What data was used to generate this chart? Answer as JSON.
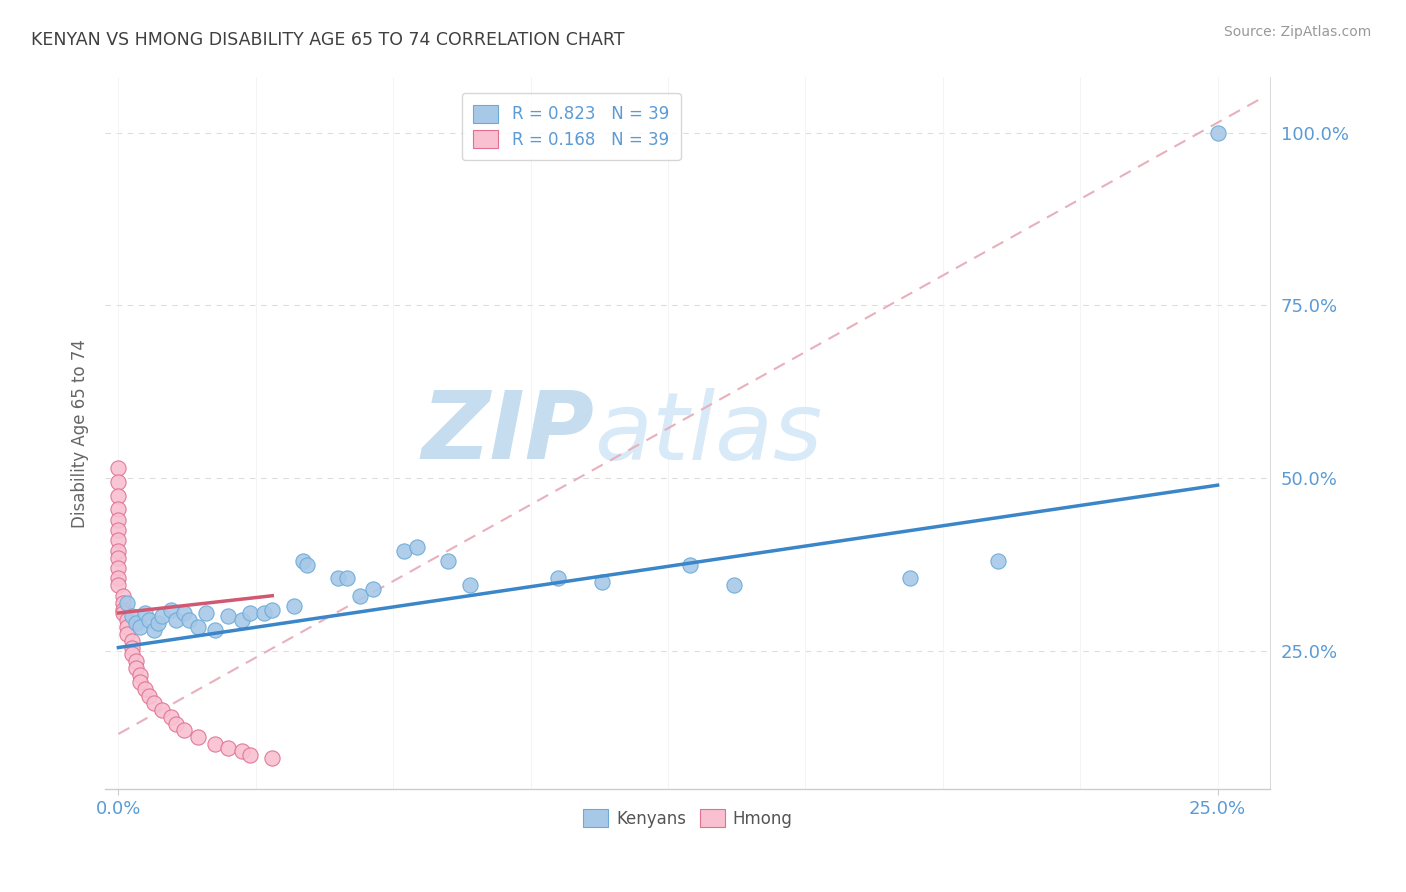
{
  "title": "KENYAN VS HMONG DISABILITY AGE 65 TO 74 CORRELATION CHART",
  "source_text": "Source: ZipAtlas.com",
  "xlim": [
    -0.003,
    0.262
  ],
  "ylim": [
    0.05,
    1.08
  ],
  "ylabel": "Disability Age 65 to 74",
  "yticks": [
    0.25,
    0.5,
    0.75,
    1.0
  ],
  "ytick_labels": [
    "25.0%",
    "50.0%",
    "75.0%",
    "100.0%"
  ],
  "xticks": [
    0.0,
    0.25
  ],
  "xtick_labels": [
    "0.0%",
    "25.0%"
  ],
  "legend_entries": [
    {
      "label": "R = 0.823   N = 39",
      "color": "#a8c4e0"
    },
    {
      "label": "R = 0.168   N = 39",
      "color": "#f4a7b9"
    }
  ],
  "legend_bottom": [
    "Kenyans",
    "Hmong"
  ],
  "title_color": "#404040",
  "watermark_zip_color": "#c8dff0",
  "watermark_atlas_color": "#d8eaf8",
  "blue_line_color": "#3a86c8",
  "red_line_color": "#d05870",
  "ref_line_color": "#e8b0bc",
  "kenyan_dot_color": "#a8c8e8",
  "kenyan_edge_color": "#6aaad8",
  "hmong_dot_color": "#f8c0d0",
  "hmong_edge_color": "#e07090",
  "kenyan_dots": [
    [
      0.002,
      0.32
    ],
    [
      0.003,
      0.3
    ],
    [
      0.004,
      0.29
    ],
    [
      0.005,
      0.285
    ],
    [
      0.006,
      0.305
    ],
    [
      0.007,
      0.295
    ],
    [
      0.008,
      0.28
    ],
    [
      0.009,
      0.29
    ],
    [
      0.01,
      0.3
    ],
    [
      0.012,
      0.31
    ],
    [
      0.013,
      0.295
    ],
    [
      0.015,
      0.305
    ],
    [
      0.016,
      0.295
    ],
    [
      0.018,
      0.285
    ],
    [
      0.02,
      0.305
    ],
    [
      0.022,
      0.28
    ],
    [
      0.025,
      0.3
    ],
    [
      0.028,
      0.295
    ],
    [
      0.03,
      0.305
    ],
    [
      0.033,
      0.305
    ],
    [
      0.035,
      0.31
    ],
    [
      0.04,
      0.315
    ],
    [
      0.042,
      0.38
    ],
    [
      0.043,
      0.375
    ],
    [
      0.05,
      0.355
    ],
    [
      0.052,
      0.355
    ],
    [
      0.055,
      0.33
    ],
    [
      0.058,
      0.34
    ],
    [
      0.065,
      0.395
    ],
    [
      0.068,
      0.4
    ],
    [
      0.075,
      0.38
    ],
    [
      0.08,
      0.345
    ],
    [
      0.1,
      0.355
    ],
    [
      0.11,
      0.35
    ],
    [
      0.13,
      0.375
    ],
    [
      0.14,
      0.345
    ],
    [
      0.18,
      0.355
    ],
    [
      0.2,
      0.38
    ],
    [
      0.25,
      1.0
    ]
  ],
  "hmong_dots": [
    [
      0.0,
      0.515
    ],
    [
      0.0,
      0.495
    ],
    [
      0.0,
      0.475
    ],
    [
      0.0,
      0.455
    ],
    [
      0.0,
      0.44
    ],
    [
      0.0,
      0.425
    ],
    [
      0.0,
      0.41
    ],
    [
      0.0,
      0.395
    ],
    [
      0.0,
      0.385
    ],
    [
      0.0,
      0.37
    ],
    [
      0.0,
      0.355
    ],
    [
      0.0,
      0.345
    ],
    [
      0.001,
      0.33
    ],
    [
      0.001,
      0.32
    ],
    [
      0.001,
      0.31
    ],
    [
      0.001,
      0.305
    ],
    [
      0.002,
      0.295
    ],
    [
      0.002,
      0.285
    ],
    [
      0.002,
      0.275
    ],
    [
      0.003,
      0.265
    ],
    [
      0.003,
      0.255
    ],
    [
      0.003,
      0.245
    ],
    [
      0.004,
      0.235
    ],
    [
      0.004,
      0.225
    ],
    [
      0.005,
      0.215
    ],
    [
      0.005,
      0.205
    ],
    [
      0.006,
      0.195
    ],
    [
      0.007,
      0.185
    ],
    [
      0.008,
      0.175
    ],
    [
      0.01,
      0.165
    ],
    [
      0.012,
      0.155
    ],
    [
      0.013,
      0.145
    ],
    [
      0.015,
      0.135
    ],
    [
      0.018,
      0.125
    ],
    [
      0.022,
      0.115
    ],
    [
      0.025,
      0.11
    ],
    [
      0.028,
      0.105
    ],
    [
      0.03,
      0.1
    ],
    [
      0.035,
      0.095
    ]
  ],
  "blue_reg_line": [
    [
      0.0,
      0.255
    ],
    [
      0.25,
      0.49
    ]
  ],
  "red_reg_line": [
    [
      0.0,
      0.305
    ],
    [
      0.035,
      0.33
    ]
  ],
  "ref_line": [
    [
      0.0,
      0.13
    ],
    [
      0.26,
      1.05
    ]
  ]
}
